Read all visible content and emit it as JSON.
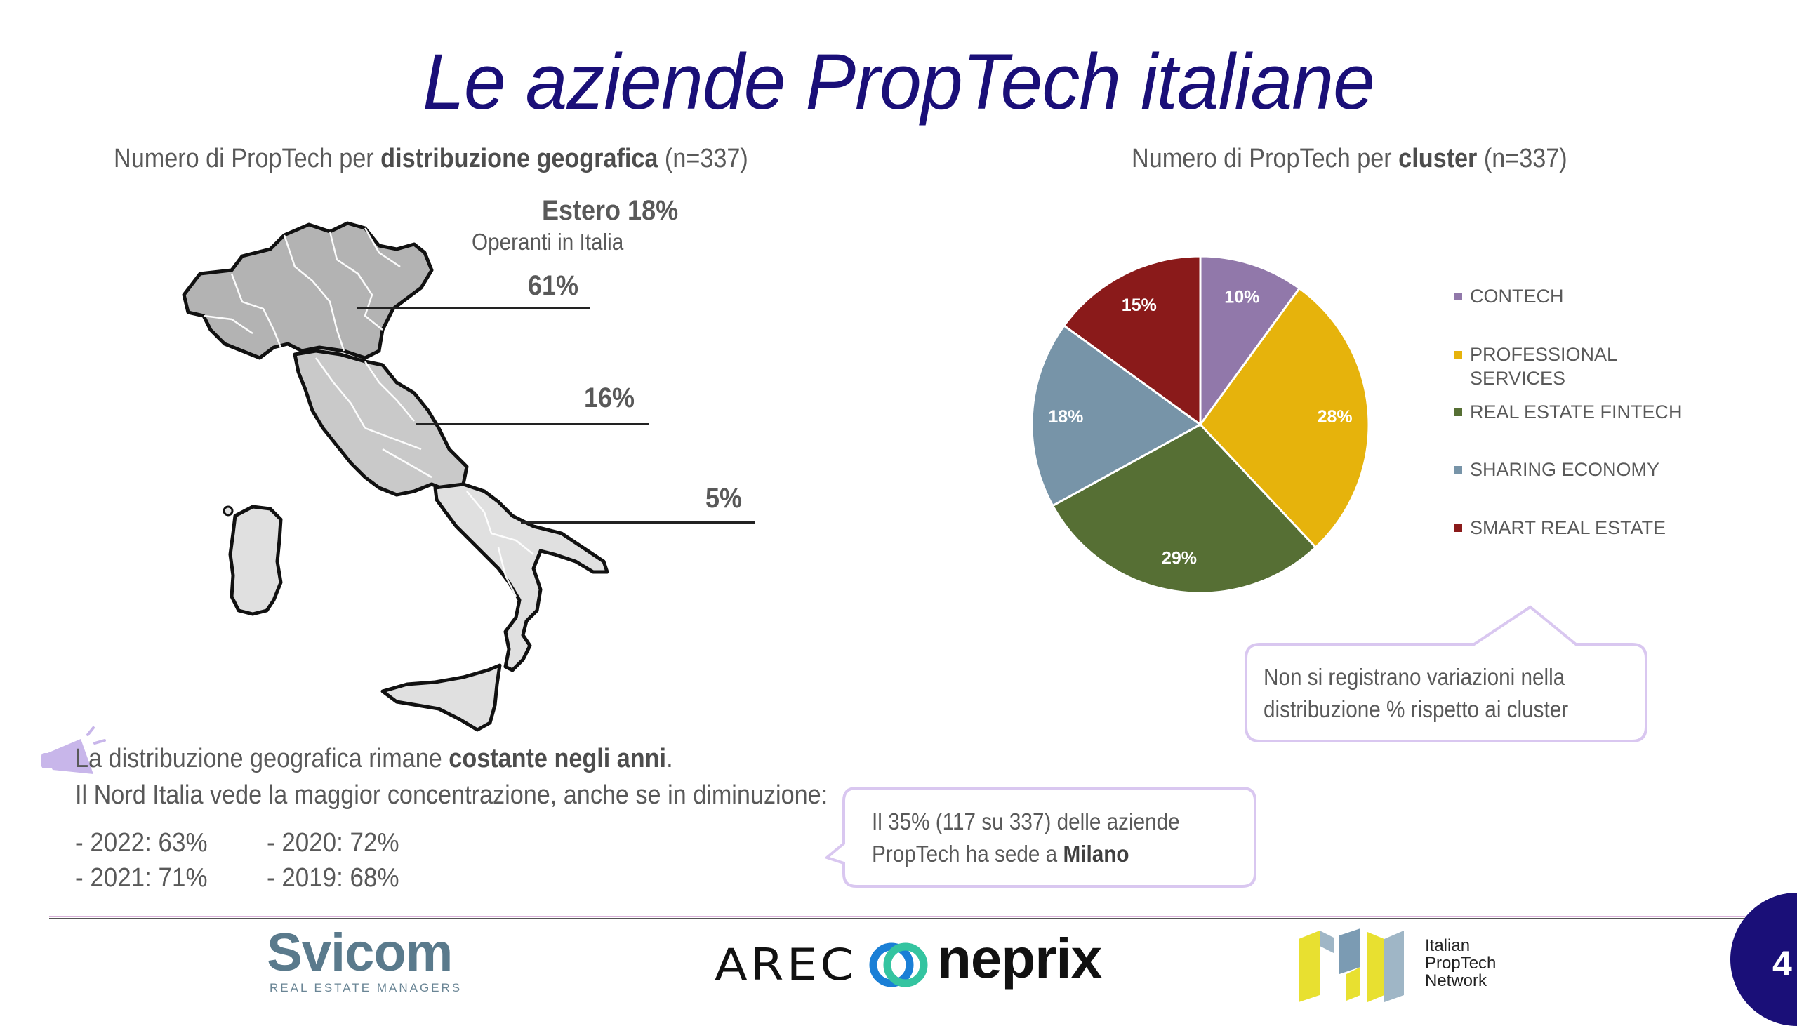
{
  "title": "Le aziende PropTech italiane",
  "geo": {
    "heading_pre": "Numero di PropTech per ",
    "heading_bold": "distribuzione geografica",
    "heading_post": " (n=337)",
    "estero": "Estero 18%",
    "operanti": "Operanti in Italia",
    "north": "61%",
    "center": "16%",
    "south": "5%"
  },
  "cluster": {
    "heading_pre": "Numero di PropTech per ",
    "heading_bold": "cluster",
    "heading_post": " (n=337)"
  },
  "chart_data": {
    "type": "pie",
    "title": "Numero di PropTech per cluster (n=337)",
    "labels": [
      "CONTECH",
      "PROFESSIONAL SERVICES",
      "REAL ESTATE FINTECH",
      "SHARING ECONOMY",
      "SMART REAL ESTATE"
    ],
    "values": [
      10,
      28,
      29,
      18,
      15
    ],
    "value_labels": [
      "10%",
      "28%",
      "29%",
      "18%",
      "15%"
    ],
    "colors": [
      "#9178aa",
      "#e6b30c",
      "#566f34",
      "#7794a8",
      "#8a1a1a"
    ],
    "legend_position": "right",
    "start": "top, clockwise"
  },
  "legend_text": [
    "CONTECH",
    "PROFESSIONAL\nSERVICES",
    "REAL ESTATE FINTECH",
    "SHARING ECONOMY",
    "SMART REAL ESTATE"
  ],
  "callout_cluster": {
    "line1": "Non si registrano variazioni nella",
    "line2": "distribuzione % rispetto ai cluster"
  },
  "callout_milano": {
    "line1": "Il 35% (117 su 337) delle aziende",
    "line2_pre": "PropTech ha sede a ",
    "line2_bold": "Milano"
  },
  "note": {
    "line1_pre": "La distribuzione geografica rimane ",
    "line1_bold": "costante negli anni",
    "line1_post": ".",
    "line2": "Il Nord Italia vede la maggior concentrazione, anche se in diminuzione:",
    "years": [
      "- 2022: 63%",
      "- 2020: 72%",
      "- 2021: 71%",
      "- 2019: 68%"
    ]
  },
  "footer": {
    "svicom": "Svicom",
    "svicom_sub": "REAL ESTATE MANAGERS",
    "arec": "AREC",
    "neprix": "neprix",
    "ipn1": "Italian",
    "ipn2": "PropTech",
    "ipn3": "Network",
    "page": "4"
  },
  "colors": {
    "title": "#1a0f78",
    "callout_border": "#d9c7f0",
    "page_badge": "#1a0f78"
  }
}
